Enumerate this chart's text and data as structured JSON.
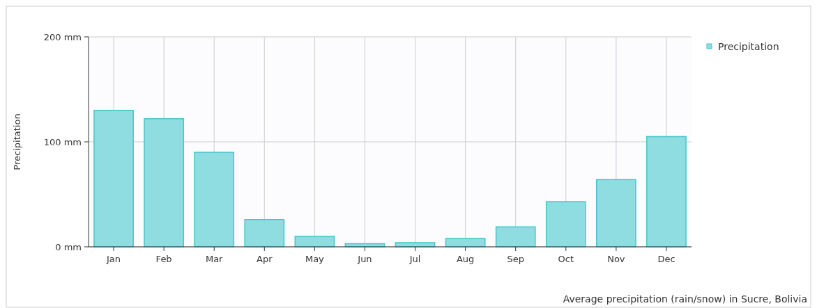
{
  "chart_data": {
    "type": "bar",
    "ylabel": "Precipitation",
    "categories": [
      "Jan",
      "Feb",
      "Mar",
      "Apr",
      "May",
      "Jun",
      "Jul",
      "Aug",
      "Sep",
      "Oct",
      "Nov",
      "Dec"
    ],
    "series": [
      {
        "name": "Precipitation",
        "color": "#8fdde0",
        "values": [
          130,
          122,
          90,
          26,
          10,
          3,
          4,
          8,
          19,
          43,
          64,
          105
        ]
      }
    ],
    "ylim": [
      0,
      200
    ],
    "yticks": [
      {
        "value": 0,
        "label": "0 mm"
      },
      {
        "value": 100,
        "label": "100 mm"
      },
      {
        "value": 200,
        "label": "200 mm"
      }
    ],
    "grid": true,
    "legend": "top right",
    "annotations": [
      "Average precipitation (rain/snow) in Sucre, Bolivia"
    ]
  }
}
